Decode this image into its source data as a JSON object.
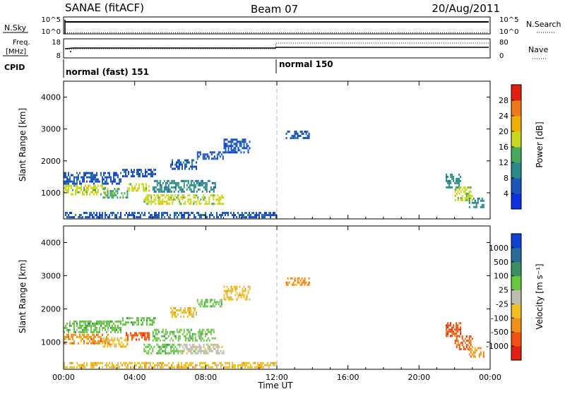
{
  "header": {
    "station": "SANAE (fitACF)",
    "beam": "Beam 07",
    "date": "20/Aug/2011"
  },
  "status_panels": {
    "nsky_label": "N.Sky",
    "nsky_ticks": [
      "10^5",
      "10^0"
    ],
    "nsearch_label": "N.Search",
    "nsearch_ticks": [
      "10^5",
      "10^0"
    ],
    "freq_label_lines": [
      "Freq.",
      "[MHz]"
    ],
    "freq_ticks": [
      "18",
      "8"
    ],
    "nave_label": "Nave",
    "nave_ticks": [
      "80",
      "0"
    ],
    "cpid_label": "CPID",
    "cpid_modes": [
      {
        "name": "normal (fast) 151",
        "start_hour": 0
      },
      {
        "name": "normal 150",
        "start_hour": 12
      }
    ]
  },
  "chart_data": [
    {
      "type": "heatmap",
      "name": "power",
      "xlabel": "",
      "ylabel": "Slant Range [km]",
      "x_range_hours": [
        0,
        24
      ],
      "x_ticks": [
        "00:00",
        "04:00",
        "08:00",
        "12:00",
        "16:00",
        "20:00",
        "00:00"
      ],
      "y_range_km": [
        180,
        4500
      ],
      "y_ticks": [
        1000,
        2000,
        3000,
        4000
      ],
      "colorbar": {
        "label": "Power [dB]",
        "ticks": [
          "4",
          "8",
          "12",
          "16",
          "20",
          "24",
          "28"
        ],
        "colors": [
          "#1030e0",
          "#1d55b8",
          "#2a8a8a",
          "#48a860",
          "#c8d820",
          "#f0b000",
          "#f07818",
          "#e02010"
        ]
      },
      "regions": [
        {
          "x0": 0.0,
          "x1": 2.5,
          "y0": 950,
          "y1": 1250,
          "level": 4
        },
        {
          "x0": 0.0,
          "x1": 3.2,
          "y0": 1300,
          "y1": 1650,
          "level": 1
        },
        {
          "x0": 2.2,
          "x1": 3.6,
          "y0": 850,
          "y1": 1150,
          "level": 3
        },
        {
          "x0": 3.5,
          "x1": 4.8,
          "y0": 1050,
          "y1": 1300,
          "level": 4
        },
        {
          "x0": 3.3,
          "x1": 5.2,
          "y0": 1500,
          "y1": 1750,
          "level": 1
        },
        {
          "x0": 4.5,
          "x1": 9.0,
          "y0": 650,
          "y1": 950,
          "level": 4
        },
        {
          "x0": 5.0,
          "x1": 8.5,
          "y0": 1050,
          "y1": 1400,
          "level": 2
        },
        {
          "x0": 6.0,
          "x1": 7.5,
          "y0": 1750,
          "y1": 2050,
          "level": 1
        },
        {
          "x0": 7.5,
          "x1": 9.0,
          "y0": 2050,
          "y1": 2300,
          "level": 1
        },
        {
          "x0": 9.0,
          "x1": 10.5,
          "y0": 2300,
          "y1": 2700,
          "level": 1
        },
        {
          "x0": 12.5,
          "x1": 13.8,
          "y0": 2700,
          "y1": 2950,
          "level": 1
        },
        {
          "x0": 21.5,
          "x1": 22.3,
          "y0": 1200,
          "y1": 1600,
          "level": 2
        },
        {
          "x0": 22.0,
          "x1": 23.0,
          "y0": 800,
          "y1": 1200,
          "level": 4
        },
        {
          "x0": 22.8,
          "x1": 23.6,
          "y0": 550,
          "y1": 850,
          "level": 2
        },
        {
          "x0": 0.0,
          "x1": 12.0,
          "y0": 250,
          "y1": 400,
          "level": 1
        }
      ]
    },
    {
      "type": "heatmap",
      "name": "velocity",
      "xlabel": "Time UT",
      "ylabel": "Slant Range [km]",
      "x_range_hours": [
        0,
        24
      ],
      "x_ticks": [
        "00:00",
        "04:00",
        "08:00",
        "12:00",
        "16:00",
        "20:00",
        "00:00"
      ],
      "y_range_km": [
        180,
        4500
      ],
      "y_ticks": [
        1000,
        2000,
        3000,
        4000
      ],
      "colorbar": {
        "label": "Velocity [m s⁻¹]",
        "ticks": [
          "1000",
          "500",
          "100",
          "25",
          "-25",
          "-100",
          "-500",
          "-1000"
        ],
        "colors": [
          "#1040d0",
          "#2a6a9a",
          "#3a9060",
          "#66c840",
          "#bebeb0",
          "#f0c020",
          "#f09018",
          "#f05010",
          "#e02010"
        ]
      },
      "regions": [
        {
          "x0": 0.0,
          "x1": 2.5,
          "y0": 950,
          "y1": 1250,
          "level": 6
        },
        {
          "x0": 0.0,
          "x1": 3.2,
          "y0": 1300,
          "y1": 1650,
          "level": 3
        },
        {
          "x0": 2.2,
          "x1": 3.6,
          "y0": 850,
          "y1": 1150,
          "level": 5
        },
        {
          "x0": 3.5,
          "x1": 4.8,
          "y0": 1050,
          "y1": 1300,
          "level": 7
        },
        {
          "x0": 3.3,
          "x1": 5.2,
          "y0": 1500,
          "y1": 1750,
          "level": 3
        },
        {
          "x0": 4.5,
          "x1": 6.5,
          "y0": 650,
          "y1": 950,
          "level": 3
        },
        {
          "x0": 6.5,
          "x1": 9.0,
          "y0": 650,
          "y1": 950,
          "level": 4
        },
        {
          "x0": 5.0,
          "x1": 8.5,
          "y0": 1050,
          "y1": 1400,
          "level": 3
        },
        {
          "x0": 6.0,
          "x1": 7.5,
          "y0": 1750,
          "y1": 2050,
          "level": 5
        },
        {
          "x0": 7.5,
          "x1": 9.0,
          "y0": 2050,
          "y1": 2300,
          "level": 3
        },
        {
          "x0": 9.0,
          "x1": 10.5,
          "y0": 2300,
          "y1": 2700,
          "level": 5
        },
        {
          "x0": 12.5,
          "x1": 13.8,
          "y0": 2700,
          "y1": 2950,
          "level": 6
        },
        {
          "x0": 21.5,
          "x1": 22.3,
          "y0": 1200,
          "y1": 1600,
          "level": 7
        },
        {
          "x0": 22.0,
          "x1": 23.0,
          "y0": 800,
          "y1": 1200,
          "level": 7
        },
        {
          "x0": 22.8,
          "x1": 23.6,
          "y0": 550,
          "y1": 850,
          "level": 6
        },
        {
          "x0": 0.0,
          "x1": 12.0,
          "y0": 250,
          "y1": 400,
          "level": 5
        }
      ]
    }
  ]
}
